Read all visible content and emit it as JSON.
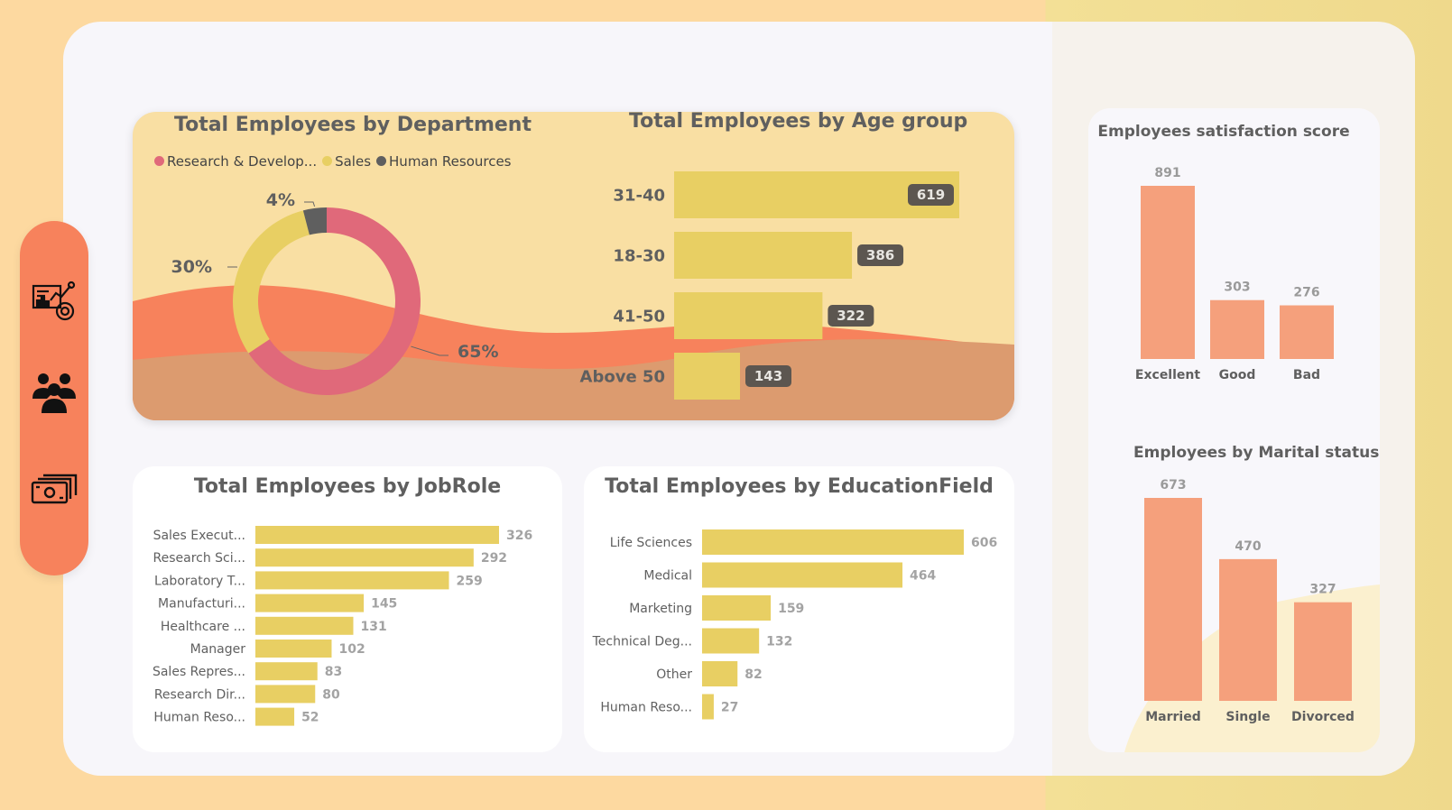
{
  "colors": {
    "accent_orange": "#f7825c",
    "bar_yellow": "#e8cf63",
    "bar_salmon": "#f5a07c",
    "dept_research": "#e0697a",
    "dept_sales": "#e8cf63",
    "dept_hr": "#5f5f5f"
  },
  "sidebar": {
    "items": [
      {
        "icon": "analytics-report-icon"
      },
      {
        "icon": "people-group-icon"
      },
      {
        "icon": "money-stack-icon"
      }
    ]
  },
  "chart_data": [
    {
      "id": "department",
      "type": "pie",
      "title": "Total Employees by Department",
      "legend": [
        "Research & Develop...",
        "Sales",
        "Human Resources"
      ],
      "legend_position": "top-left",
      "slices": [
        {
          "label": "Research & Develop...",
          "percent": 65,
          "display": "65%"
        },
        {
          "label": "Sales",
          "percent": 30,
          "display": "30%"
        },
        {
          "label": "Human Resources",
          "percent": 4,
          "display": "4%"
        }
      ]
    },
    {
      "id": "age",
      "type": "bar",
      "orientation": "horizontal",
      "title": "Total Employees by Age group",
      "categories": [
        "31-40",
        "18-30",
        "41-50",
        "Above 50"
      ],
      "values": [
        619,
        386,
        322,
        143
      ],
      "xlim": [
        0,
        619
      ]
    },
    {
      "id": "jobrole",
      "type": "bar",
      "orientation": "horizontal",
      "title": "Total Employees by JobRole",
      "categories": [
        "Sales Execut...",
        "Research Sci...",
        "Laboratory T...",
        "Manufacturi...",
        "Healthcare ...",
        "Manager",
        "Sales Repres...",
        "Research Dir...",
        "Human Reso..."
      ],
      "values": [
        326,
        292,
        259,
        145,
        131,
        102,
        83,
        80,
        52
      ],
      "xlim": [
        0,
        326
      ]
    },
    {
      "id": "education",
      "type": "bar",
      "orientation": "horizontal",
      "title": "Total Employees by EducationField",
      "categories": [
        "Life Sciences",
        "Medical",
        "Marketing",
        "Technical Deg...",
        "Other",
        "Human Reso..."
      ],
      "values": [
        606,
        464,
        159,
        132,
        82,
        27
      ],
      "xlim": [
        0,
        606
      ]
    },
    {
      "id": "satisfaction",
      "type": "bar",
      "orientation": "vertical",
      "title": "Employees satisfaction score",
      "categories": [
        "Excellent",
        "Good",
        "Bad"
      ],
      "values": [
        891,
        303,
        276
      ],
      "ylim": [
        0,
        891
      ]
    },
    {
      "id": "marital",
      "type": "bar",
      "orientation": "vertical",
      "title": "Employees by Marital status",
      "categories": [
        "Married",
        "Single",
        "Divorced"
      ],
      "values": [
        673,
        470,
        327
      ],
      "ylim": [
        0,
        673
      ]
    }
  ]
}
